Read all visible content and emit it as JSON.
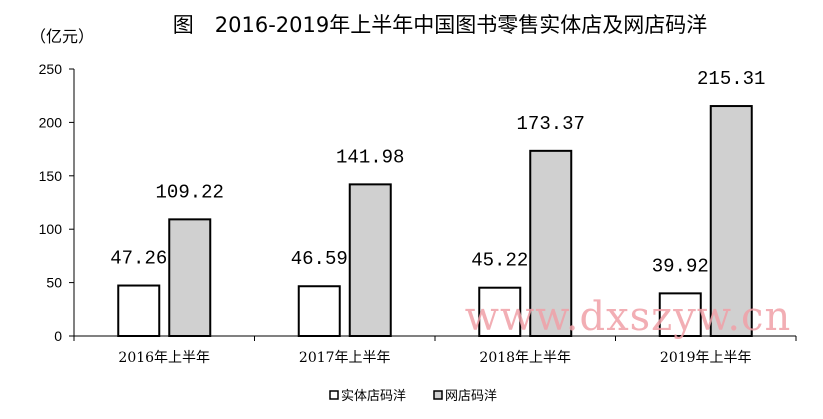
{
  "chart_data": {
    "type": "bar",
    "title": "图　2016-2019年上半年中国图书零售实体店及网店码洋",
    "unit_label": "（亿元）",
    "categories": [
      "2016年上半年",
      "2017年上半年",
      "2018年上半年",
      "2019年上半年"
    ],
    "series": [
      {
        "name": "实体店码洋",
        "values": [
          47.26,
          46.59,
          45.22,
          39.92
        ],
        "value_labels": [
          "47.26",
          "46.59",
          "45.22",
          "39.92"
        ],
        "fill": "#ffffff"
      },
      {
        "name": "网店码洋",
        "values": [
          109.22,
          141.98,
          173.37,
          215.31
        ],
        "value_labels": [
          "109.22",
          "141.98",
          "173.37",
          "215.31"
        ],
        "fill": "#d0d0d0"
      }
    ],
    "ylim": [
      0,
      250
    ],
    "yticks": [
      0,
      50,
      100,
      150,
      200,
      250
    ],
    "grid": false,
    "legend_position": "bottom-center"
  },
  "watermark": "www.dxszyw.cn"
}
